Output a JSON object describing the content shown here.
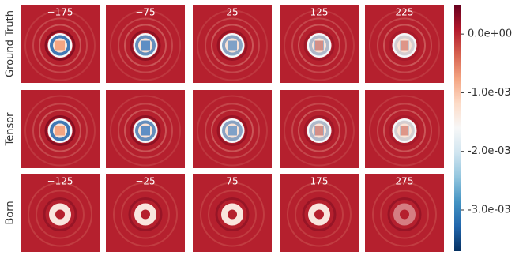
{
  "chart_data": {
    "type": "heatmap-grid",
    "row_labels": [
      "Ground Truth",
      "Tensor",
      "Born"
    ],
    "panel_titles": [
      [
        "−175",
        "−75",
        "25",
        "125",
        "225"
      ],
      [
        null,
        null,
        null,
        null,
        null
      ],
      [
        "−125",
        "−25",
        "75",
        "175",
        "275"
      ]
    ],
    "colorbar": {
      "colormap": "RdBu_r",
      "lim": [
        -0.0037,
        0.0005
      ],
      "ticks": [
        {
          "value": 0,
          "label": "0.0e+00"
        },
        {
          "value": -0.001,
          "label": "-1.0e-03"
        },
        {
          "value": -0.002,
          "label": "-2.0e-03"
        },
        {
          "value": -0.003,
          "label": "-3.0e-03"
        }
      ]
    }
  }
}
